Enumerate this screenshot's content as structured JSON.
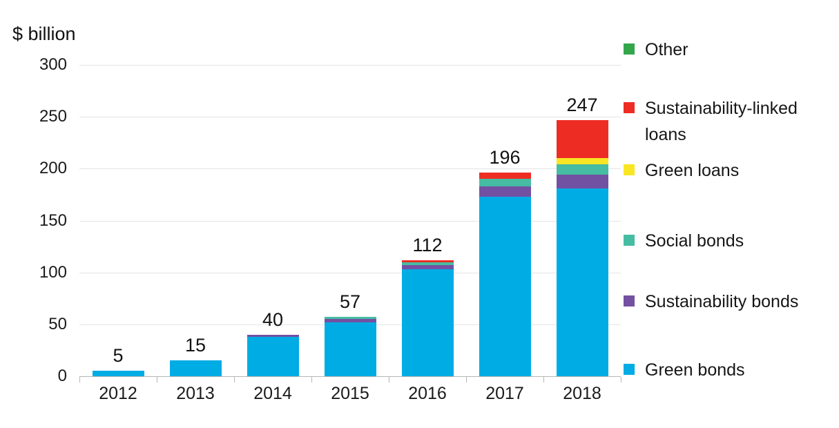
{
  "chart_data": {
    "type": "bar",
    "stacked": true,
    "ylabel": "$ billion",
    "ylim": [
      0,
      300
    ],
    "yticks": [
      0,
      50,
      100,
      150,
      200,
      250,
      300
    ],
    "grid": "horizontal",
    "legend_position": "right",
    "categories": [
      "2012",
      "2013",
      "2014",
      "2015",
      "2016",
      "2017",
      "2018"
    ],
    "totals": [
      5,
      15,
      40,
      57,
      112,
      196,
      247
    ],
    "series": [
      {
        "name": "Green bonds",
        "color": "#00ACE4",
        "values": [
          5,
          15,
          38,
          52,
          103,
          173,
          181
        ]
      },
      {
        "name": "Sustainability bonds",
        "color": "#7351A2",
        "values": [
          0,
          0,
          2,
          3,
          4,
          10,
          13
        ]
      },
      {
        "name": "Social bonds",
        "color": "#46BCA2",
        "values": [
          0,
          0,
          0,
          2,
          3,
          7,
          10
        ]
      },
      {
        "name": "Green loans",
        "color": "#F8E625",
        "values": [
          0,
          0,
          0,
          0,
          0,
          0,
          6
        ]
      },
      {
        "name": "Sustainability-linked loans",
        "color": "#ED2D24",
        "values": [
          0,
          0,
          0,
          0,
          2,
          6,
          37
        ]
      },
      {
        "name": "Other",
        "color": "#33A64C",
        "values": [
          0,
          0,
          0,
          0,
          0,
          0,
          0
        ]
      }
    ],
    "legend": [
      {
        "label": "Other",
        "color": "#33A64C"
      },
      {
        "label": "Sustainability-linked loans",
        "color": "#ED2D24"
      },
      {
        "label": "Green loans",
        "color": "#F8E625"
      },
      {
        "label": "Social bonds",
        "color": "#46BCA2"
      },
      {
        "label": "Sustainability bonds",
        "color": "#7351A2"
      },
      {
        "label": "Green bonds",
        "color": "#00ACE4"
      }
    ]
  }
}
